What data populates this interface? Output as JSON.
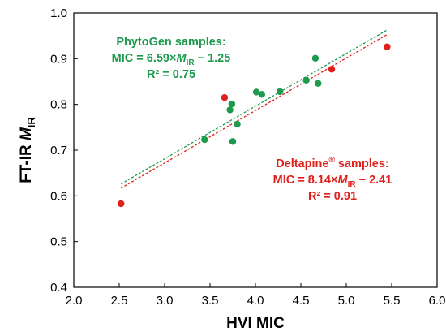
{
  "chart_data": {
    "type": "scatter",
    "xlabel": "HVI MIC",
    "ylabel": "FT-IR M",
    "ylabel_subscript": "IR",
    "xlim": [
      2.0,
      6.0
    ],
    "ylim": [
      0.4,
      1.0
    ],
    "x_ticks": [
      "2.0",
      "2.5",
      "3.0",
      "3.5",
      "4.0",
      "4.5",
      "5.0",
      "5.5",
      "6.0"
    ],
    "y_ticks": [
      "0.4",
      "0.5",
      "0.6",
      "0.7",
      "0.8",
      "0.9",
      "1.0"
    ],
    "grid": false,
    "series": [
      {
        "name": "PhytoGen samples",
        "color": "#1e9a4f",
        "points": [
          {
            "x": 3.44,
            "y": 0.723
          },
          {
            "x": 3.72,
            "y": 0.788
          },
          {
            "x": 3.74,
            "y": 0.801
          },
          {
            "x": 3.75,
            "y": 0.719
          },
          {
            "x": 3.8,
            "y": 0.757
          },
          {
            "x": 4.01,
            "y": 0.827
          },
          {
            "x": 4.07,
            "y": 0.822
          },
          {
            "x": 4.27,
            "y": 0.828
          },
          {
            "x": 4.56,
            "y": 0.853
          },
          {
            "x": 4.66,
            "y": 0.901
          },
          {
            "x": 4.69,
            "y": 0.846
          }
        ],
        "fit": {
          "x": [
            2.52,
            5.45
          ],
          "y": [
            0.626,
            0.963
          ]
        }
      },
      {
        "name": "Deltapine® samples",
        "color": "#e0201b",
        "points": [
          {
            "x": 2.52,
            "y": 0.583
          },
          {
            "x": 3.66,
            "y": 0.815
          },
          {
            "x": 4.84,
            "y": 0.877
          },
          {
            "x": 5.45,
            "y": 0.926
          }
        ],
        "fit": {
          "x": [
            2.52,
            5.45
          ],
          "y": [
            0.617,
            0.953
          ]
        }
      }
    ],
    "annotations": {
      "phytogen": {
        "line1": "PhytoGen samples:",
        "line2_prefix": "MIC = 6.59×",
        "line2_var": "M",
        "line2_sub": "IR",
        "line2_suffix": " − 1.25",
        "line3": "R² = 0.75",
        "color": "#1e9a4f"
      },
      "deltapine": {
        "line1_main": "Deltapine",
        "line1_sup": "®",
        "line1_rest": " samples:",
        "line2_prefix": "MIC = 8.14×",
        "line2_var": "M",
        "line2_sub": "IR",
        "line2_suffix": " − 2.41",
        "line3": "R² = 0.91",
        "color": "#e0201b"
      }
    }
  }
}
